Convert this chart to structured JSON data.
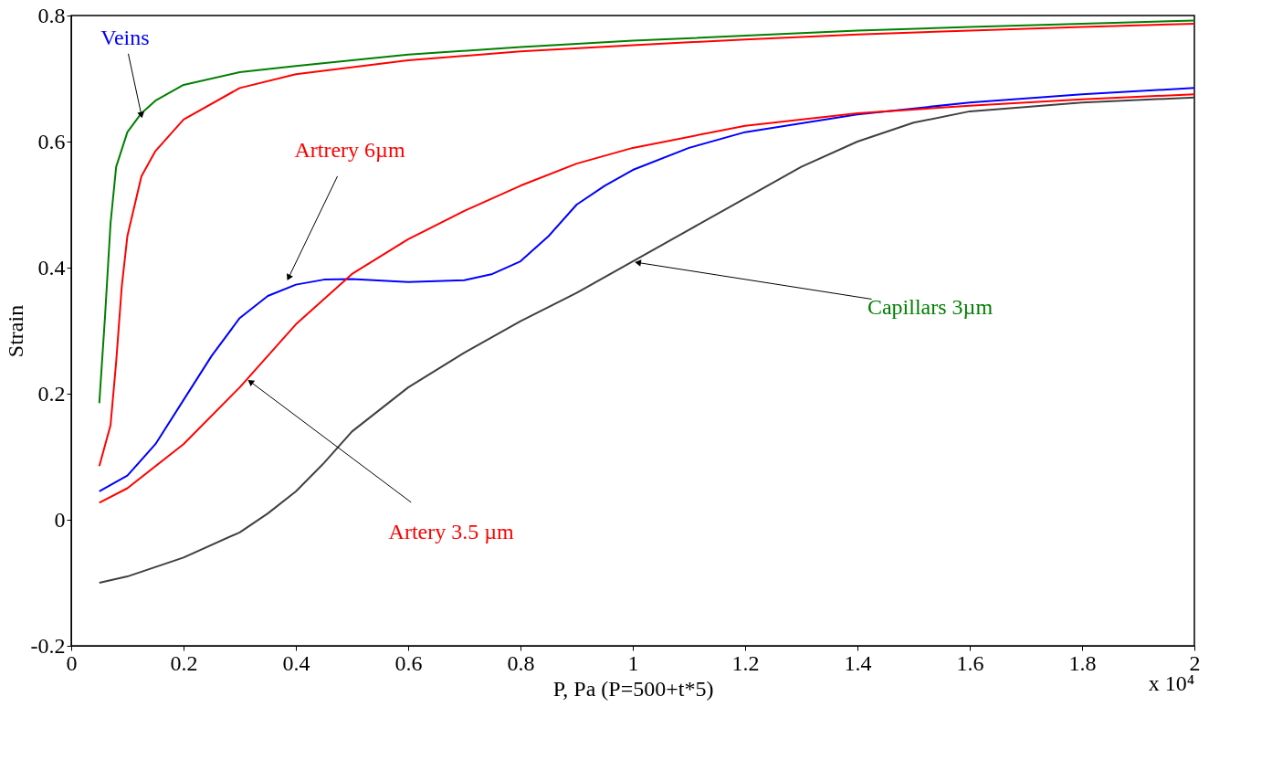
{
  "chart_data": {
    "type": "line",
    "xlabel": "P, Pa (P=500+t*5)",
    "ylabel": "Strain",
    "xlim": [
      0,
      2
    ],
    "xticks": [
      0,
      0.2,
      0.4,
      0.6,
      0.8,
      1,
      1.2,
      1.4,
      1.6,
      1.8,
      2
    ],
    "ylim": [
      -0.2,
      0.8
    ],
    "yticks": [
      -0.2,
      0,
      0.2,
      0.4,
      0.6,
      0.8
    ],
    "grid": false,
    "line_style": "solid",
    "marker": "none",
    "series": [
      {
        "color": "#008000",
        "x": [
          0.05,
          0.06,
          0.07,
          0.08,
          0.1,
          0.125,
          0.15,
          0.2,
          0.3,
          0.4,
          0.6,
          0.8,
          1.0,
          1.2,
          1.4,
          1.6,
          1.8,
          2.0
        ],
        "values": [
          0.185,
          0.32,
          0.47,
          0.56,
          0.615,
          0.645,
          0.665,
          0.69,
          0.71,
          0.72,
          0.738,
          0.75,
          0.76,
          0.768,
          0.776,
          0.782,
          0.787,
          0.792
        ]
      },
      {
        "color": "#ff0000",
        "x": [
          0.05,
          0.07,
          0.08,
          0.09,
          0.1,
          0.125,
          0.15,
          0.2,
          0.3,
          0.4,
          0.6,
          0.8,
          1.0,
          1.2,
          1.4,
          1.6,
          1.8,
          2.0
        ],
        "values": [
          0.085,
          0.15,
          0.25,
          0.37,
          0.45,
          0.545,
          0.585,
          0.635,
          0.685,
          0.707,
          0.729,
          0.743,
          0.753,
          0.762,
          0.77,
          0.776,
          0.782,
          0.787
        ]
      },
      {
        "color": "#0000ff",
        "x": [
          0.05,
          0.1,
          0.15,
          0.2,
          0.25,
          0.3,
          0.35,
          0.4,
          0.45,
          0.5,
          0.6,
          0.7,
          0.75,
          0.8,
          0.85,
          0.9,
          0.95,
          1.0,
          1.1,
          1.2,
          1.4,
          1.6,
          1.8,
          2.0
        ],
        "values": [
          0.045,
          0.07,
          0.12,
          0.19,
          0.26,
          0.32,
          0.355,
          0.373,
          0.381,
          0.382,
          0.377,
          0.38,
          0.39,
          0.41,
          0.45,
          0.5,
          0.53,
          0.555,
          0.59,
          0.615,
          0.643,
          0.662,
          0.675,
          0.685
        ]
      },
      {
        "color": "#ff0000",
        "x": [
          0.05,
          0.1,
          0.2,
          0.3,
          0.4,
          0.5,
          0.6,
          0.7,
          0.8,
          0.9,
          1.0,
          1.2,
          1.4,
          1.6,
          1.8,
          2.0
        ],
        "values": [
          0.027,
          0.05,
          0.12,
          0.21,
          0.31,
          0.39,
          0.445,
          0.49,
          0.53,
          0.565,
          0.59,
          0.625,
          0.645,
          0.657,
          0.667,
          0.675
        ]
      },
      {
        "color": "#404040",
        "x": [
          0.05,
          0.1,
          0.2,
          0.3,
          0.35,
          0.4,
          0.45,
          0.5,
          0.6,
          0.7,
          0.8,
          0.9,
          1.0,
          1.1,
          1.2,
          1.3,
          1.4,
          1.5,
          1.6,
          1.8,
          2.0
        ],
        "values": [
          -0.1,
          -0.09,
          -0.06,
          -0.02,
          0.01,
          0.045,
          0.09,
          0.14,
          0.21,
          0.265,
          0.315,
          0.36,
          0.41,
          0.46,
          0.51,
          0.56,
          0.6,
          0.63,
          0.648,
          0.662,
          0.67
        ]
      }
    ],
    "annotations": [
      {
        "text": "Veins",
        "x": 0.125,
        "y": 0.642
      },
      {
        "text": "Artrery 6µm",
        "x": 0.387,
        "y": 0.384
      },
      {
        "text": "Artery 3.5 µm",
        "x": 0.319,
        "y": 0.219
      },
      {
        "text": "Capillars 3µm",
        "x": 1.009,
        "y": 0.408
      },
      "x 10⁴"
    ]
  }
}
